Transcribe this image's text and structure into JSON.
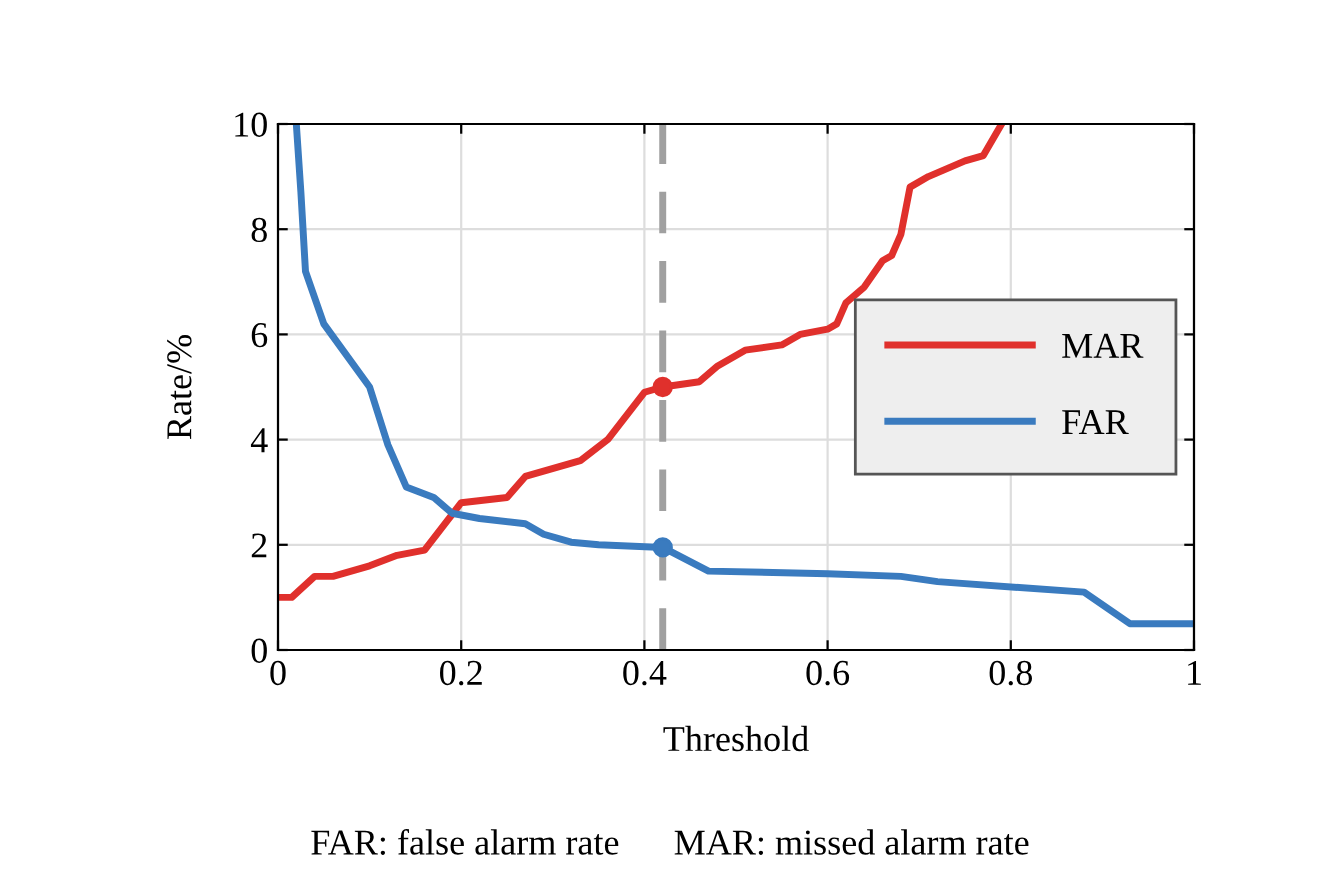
{
  "chart_data": {
    "type": "line",
    "xlabel": "Threshold",
    "ylabel": "Rate/%",
    "xlim": [
      0,
      1
    ],
    "ylim": [
      0,
      10
    ],
    "xticks": [
      0,
      0.2,
      0.4,
      0.6,
      0.8,
      1
    ],
    "yticks": [
      0,
      2,
      4,
      6,
      8,
      10
    ],
    "grid": true,
    "legend": "right",
    "line_style": "solid",
    "marker": "none",
    "series": [
      {
        "name": "MAR",
        "color": "#e0302c",
        "x": [
          0,
          0.015,
          0.04,
          0.06,
          0.1,
          0.13,
          0.16,
          0.2,
          0.25,
          0.27,
          0.29,
          0.33,
          0.36,
          0.4,
          0.42,
          0.46,
          0.48,
          0.51,
          0.55,
          0.57,
          0.6,
          0.61,
          0.62,
          0.64,
          0.66,
          0.67,
          0.68,
          0.69,
          0.71,
          0.75,
          0.77,
          0.79
        ],
        "values": [
          1,
          1,
          1.4,
          1.4,
          1.6,
          1.8,
          1.9,
          2.8,
          2.9,
          3.3,
          3.4,
          3.6,
          4.0,
          4.9,
          5.0,
          5.1,
          5.4,
          5.7,
          5.8,
          6.0,
          6.1,
          6.2,
          6.6,
          6.9,
          7.4,
          7.5,
          7.9,
          8.8,
          9.0,
          9.3,
          9.4,
          10.0
        ]
      },
      {
        "name": "FAR",
        "color": "#3a7bbf",
        "x": [
          0.02,
          0.025,
          0.03,
          0.05,
          0.1,
          0.12,
          0.14,
          0.17,
          0.19,
          0.22,
          0.27,
          0.29,
          0.32,
          0.35,
          0.42,
          0.47,
          0.6,
          0.68,
          0.72,
          0.88,
          0.93,
          1
        ],
        "values": [
          10,
          8.7,
          7.2,
          6.2,
          5.0,
          3.9,
          3.1,
          2.9,
          2.6,
          2.5,
          2.4,
          2.2,
          2.05,
          2.0,
          1.95,
          1.5,
          1.45,
          1.4,
          1.3,
          1.1,
          0.5,
          0.5
        ]
      },
      {
        "type": "scatter",
        "color": "#e0302c",
        "x": [
          0.42
        ],
        "values": [
          5.0
        ],
        "marker": "circle"
      },
      {
        "type": "scatter",
        "color": "#3a7bbf",
        "x": [
          0.42
        ],
        "values": [
          1.95
        ],
        "marker": "circle"
      }
    ],
    "ref_lines": [
      {
        "axis": "x",
        "value": 0.42,
        "color": "#a0a0a0",
        "line_style": "dashed"
      }
    ],
    "annotations": [
      "FAR: false alarm rate      MAR: missed alarm rate"
    ]
  }
}
